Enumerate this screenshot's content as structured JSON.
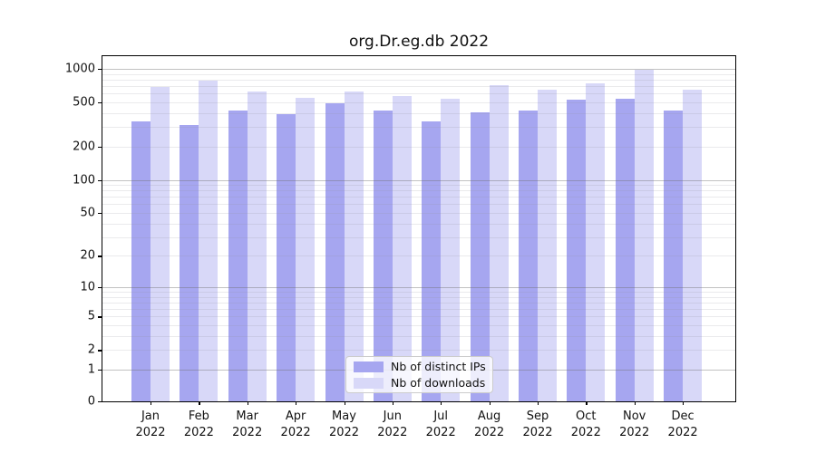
{
  "title": "org.Dr.eg.db 2022",
  "chart_data": {
    "type": "bar",
    "title": "org.Dr.eg.db 2022",
    "categories": [
      "Jan",
      "Feb",
      "Mar",
      "Apr",
      "May",
      "Jun",
      "Jul",
      "Aug",
      "Sep",
      "Oct",
      "Nov",
      "Dec"
    ],
    "category_year": "2022",
    "series": [
      {
        "name": "Nb of distinct IPs",
        "color": "#a6a6f0",
        "values": [
          340,
          315,
          425,
          390,
          490,
          425,
          335,
          410,
          425,
          530,
          535,
          420
        ]
      },
      {
        "name": "Nb of downloads",
        "color": "#d8d8f8",
        "values": [
          690,
          780,
          630,
          550,
          620,
          570,
          535,
          710,
          645,
          735,
          980,
          645
        ]
      }
    ],
    "xlabel": "",
    "ylabel": "",
    "yscale": "log1p",
    "y_ticks": [
      0,
      1,
      2,
      5,
      10,
      20,
      50,
      100,
      200,
      500,
      1000
    ],
    "y_minor_gridlines": [
      2,
      3,
      4,
      5,
      6,
      7,
      8,
      9,
      20,
      30,
      40,
      50,
      60,
      70,
      80,
      90,
      200,
      300,
      400,
      500,
      600,
      700,
      800,
      900
    ],
    "y_major_gridlines": [
      1,
      10,
      100,
      1000
    ],
    "ylim": [
      0,
      1300
    ],
    "grid": true,
    "grid_over_bars": true,
    "legend_position": "lower center"
  }
}
